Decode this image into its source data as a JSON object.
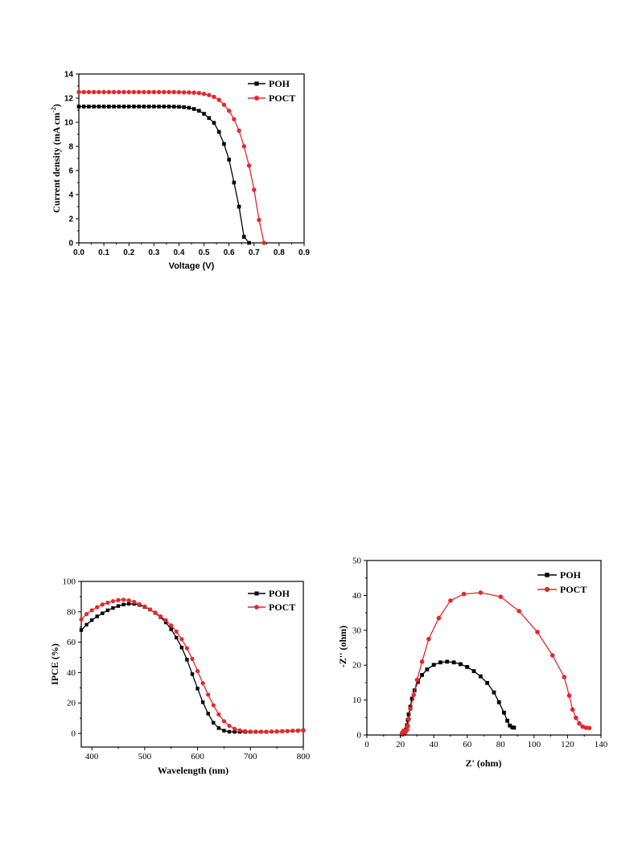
{
  "chart_data": [
    {
      "type": "line",
      "xlabel": "Voltage (V)",
      "ylabel": "Current density (mA cm",
      "ylabel_sup": "-2",
      "ylabel_close": ")",
      "xlim": [
        0,
        0.9
      ],
      "ylim": [
        0,
        14
      ],
      "xticks": [
        "0.0",
        "0.1",
        "0.2",
        "0.3",
        "0.4",
        "0.5",
        "0.6",
        "0.7",
        "0.8",
        "0.9"
      ],
      "yticks": [
        "0",
        "2",
        "4",
        "6",
        "8",
        "10",
        "12",
        "14"
      ],
      "series": [
        {
          "name": "POH",
          "color": "#000000",
          "marker": "square",
          "x": [
            0,
            0.02,
            0.04,
            0.06,
            0.08,
            0.1,
            0.12,
            0.14,
            0.16,
            0.18,
            0.2,
            0.22,
            0.24,
            0.26,
            0.28,
            0.3,
            0.32,
            0.34,
            0.36,
            0.38,
            0.4,
            0.42,
            0.44,
            0.46,
            0.48,
            0.5,
            0.52,
            0.54,
            0.56,
            0.58,
            0.6,
            0.62,
            0.64,
            0.66,
            0.68
          ],
          "y": [
            11.3,
            11.3,
            11.3,
            11.3,
            11.3,
            11.3,
            11.3,
            11.3,
            11.3,
            11.3,
            11.3,
            11.3,
            11.3,
            11.3,
            11.3,
            11.3,
            11.3,
            11.3,
            11.3,
            11.29,
            11.28,
            11.25,
            11.2,
            11.1,
            10.95,
            10.7,
            10.35,
            9.95,
            9.2,
            8.2,
            6.9,
            5.0,
            3.0,
            0.5,
            0
          ]
        },
        {
          "name": "POCT",
          "color": "#e8262b",
          "marker": "circle",
          "x": [
            0,
            0.02,
            0.04,
            0.06,
            0.08,
            0.1,
            0.12,
            0.14,
            0.16,
            0.18,
            0.2,
            0.22,
            0.24,
            0.26,
            0.28,
            0.3,
            0.32,
            0.34,
            0.36,
            0.38,
            0.4,
            0.42,
            0.44,
            0.46,
            0.48,
            0.5,
            0.52,
            0.54,
            0.56,
            0.58,
            0.6,
            0.62,
            0.64,
            0.66,
            0.68,
            0.7,
            0.72,
            0.74
          ],
          "y": [
            12.5,
            12.5,
            12.5,
            12.5,
            12.5,
            12.5,
            12.5,
            12.5,
            12.5,
            12.5,
            12.5,
            12.5,
            12.5,
            12.5,
            12.5,
            12.5,
            12.5,
            12.5,
            12.5,
            12.5,
            12.49,
            12.48,
            12.47,
            12.45,
            12.42,
            12.35,
            12.25,
            12.1,
            11.85,
            11.45,
            10.95,
            10.25,
            9.3,
            8.0,
            6.4,
            4.4,
            1.9,
            0
          ]
        }
      ],
      "legend": "top-right"
    },
    {
      "type": "line",
      "xlabel": "Wavelength (nm)",
      "ylabel": "IPCE (%)",
      "xlim": [
        380,
        800
      ],
      "ylim": [
        -9,
        100
      ],
      "xticks": [
        "400",
        "500",
        "600",
        "700",
        "800"
      ],
      "yticks": [
        "0",
        "20",
        "40",
        "60",
        "80",
        "100"
      ],
      "series": [
        {
          "name": "POH",
          "color": "#000000",
          "marker": "square",
          "x": [
            380,
            390,
            400,
            410,
            420,
            430,
            440,
            450,
            460,
            470,
            480,
            490,
            500,
            510,
            520,
            530,
            540,
            550,
            560,
            570,
            580,
            590,
            600,
            610,
            620,
            630,
            640,
            650,
            660,
            670,
            680,
            690,
            700,
            710,
            720,
            730,
            740,
            750,
            760,
            770,
            780,
            790,
            800
          ],
          "y": [
            68,
            71.5,
            74.5,
            77,
            79,
            81,
            82.5,
            83.8,
            84.8,
            85.3,
            85.2,
            84.5,
            83.2,
            81.5,
            79.2,
            76.5,
            73,
            68.5,
            63,
            56.5,
            48.5,
            39,
            29.5,
            20.5,
            13,
            7,
            3.5,
            1.8,
            1.1,
            1,
            1,
            1,
            1,
            1,
            1,
            1,
            1.1,
            1.2,
            1.4,
            1.5,
            1.7,
            1.8,
            2
          ]
        },
        {
          "name": "POCT",
          "color": "#e8262b",
          "marker": "circle",
          "x": [
            380,
            390,
            400,
            410,
            420,
            430,
            440,
            450,
            460,
            470,
            480,
            490,
            500,
            510,
            520,
            530,
            540,
            550,
            560,
            570,
            580,
            590,
            600,
            610,
            620,
            630,
            640,
            650,
            660,
            670,
            680,
            690,
            700,
            710,
            720,
            730,
            740,
            750,
            760,
            770,
            780,
            790,
            800
          ],
          "y": [
            75,
            78.5,
            81,
            83,
            84.8,
            86,
            87,
            87.7,
            88,
            87.5,
            86.5,
            85,
            83.5,
            81.5,
            79.5,
            77,
            74.5,
            71,
            67,
            62,
            56,
            49,
            41,
            33,
            25.5,
            18.5,
            12.5,
            8,
            5,
            3,
            2,
            1.5,
            1.2,
            1.1,
            1.1,
            1.1,
            1.2,
            1.3,
            1.4,
            1.5,
            1.7,
            1.8,
            2
          ]
        }
      ],
      "legend": "top-right"
    },
    {
      "type": "scatter",
      "xlabel": "Z' (ohm)",
      "ylabel": "-Z'' (ohm)",
      "xlim": [
        0,
        140
      ],
      "ylim": [
        0,
        50
      ],
      "xticks": [
        "0",
        "20",
        "40",
        "60",
        "80",
        "100",
        "120",
        "140"
      ],
      "yticks": [
        "0",
        "10",
        "20",
        "30",
        "40",
        "50"
      ],
      "series": [
        {
          "name": "POH",
          "color": "#000000",
          "marker": "square",
          "x": [
            21,
            21.5,
            22,
            22.5,
            23,
            23.5,
            24,
            24.5,
            25,
            26,
            27,
            28.5,
            30.5,
            33,
            36,
            40,
            44,
            48,
            52,
            56,
            60,
            64,
            68,
            72,
            76,
            79,
            82,
            84,
            85.5,
            87,
            88
          ],
          "y": [
            0.2,
            0.6,
            1.2,
            0.4,
            0.9,
            1.6,
            2.8,
            4.3,
            5.9,
            8.1,
            10.4,
            12.8,
            15.2,
            17.2,
            18.8,
            20.1,
            20.8,
            21.0,
            20.8,
            20.3,
            19.5,
            18.3,
            16.8,
            14.9,
            12.2,
            9.4,
            6.4,
            4.1,
            2.7,
            2.2,
            2.1
          ]
        },
        {
          "name": "POCT",
          "color": "#e8262b",
          "marker": "circle",
          "x": [
            21,
            22,
            23,
            24,
            24.5,
            25,
            26,
            28,
            30,
            33,
            37,
            43,
            50,
            58,
            68,
            80,
            91,
            102,
            111,
            118,
            121,
            123,
            125,
            127,
            129,
            131,
            133
          ],
          "y": [
            0.5,
            1.2,
            0.8,
            1.5,
            2.6,
            4.6,
            7.5,
            11.5,
            15.8,
            21,
            27.5,
            33.5,
            38.5,
            40.4,
            40.8,
            39.6,
            35.5,
            29.5,
            22.8,
            16.6,
            11.3,
            7.3,
            4.9,
            3.3,
            2.4,
            2.1,
            2.0
          ]
        }
      ],
      "legend": "top-right"
    }
  ]
}
